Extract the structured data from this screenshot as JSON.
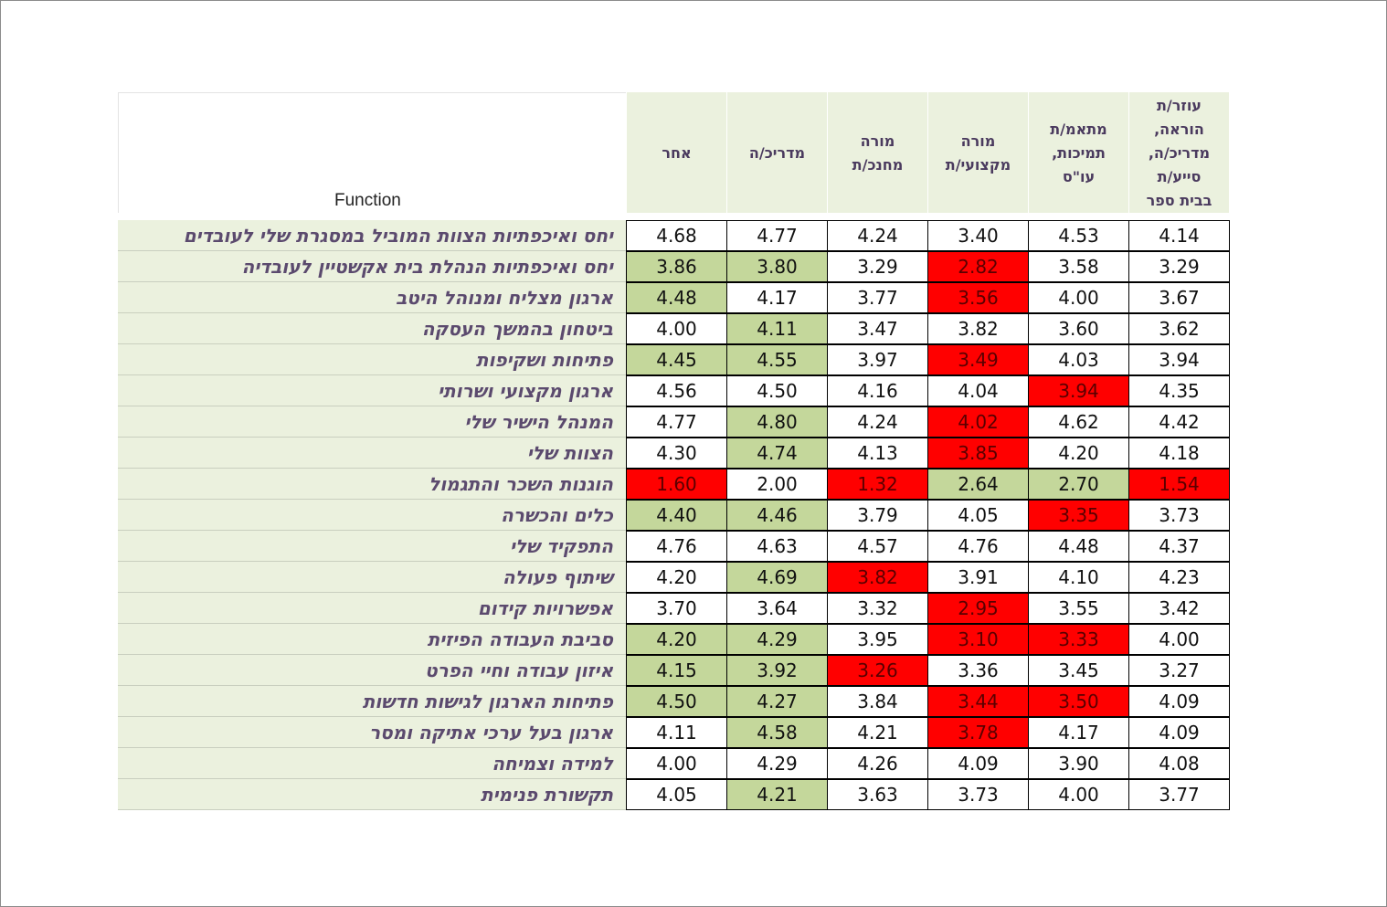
{
  "chart_data": {
    "type": "table",
    "corner_label": "Function",
    "columns": [
      {
        "label": "עוזר/ת\nהוראה,\nמדריכ/ה,\nסייע/ת\nבבית ספר"
      },
      {
        "label": "מתאמ/ת\nתמיכות,\nעו\"ס"
      },
      {
        "label": "מורה\nמקצועי/ת"
      },
      {
        "label": "מורה\nמחנכ/ת"
      },
      {
        "label": "מדריכ/ה"
      },
      {
        "label": "אחר"
      }
    ],
    "colors": {
      "green": "#c4d79b",
      "red": "#ff0000",
      "white": "#ffffff",
      "label_bg": "#ebf1de"
    },
    "rows": [
      {
        "label": "יחס ואיכפתיות הצוות המוביל במסגרת שלי לעובדים",
        "values": [
          "4.14",
          "4.53",
          "3.40",
          "4.24",
          "4.77",
          "4.68"
        ],
        "highlight": [
          "w",
          "w",
          "w",
          "w",
          "w",
          "w"
        ]
      },
      {
        "label": "יחס ואיכפתיות הנהלת בית אקשטיין לעובדיה",
        "values": [
          "3.29",
          "3.58",
          "2.82",
          "3.29",
          "3.80",
          "3.86"
        ],
        "highlight": [
          "w",
          "w",
          "r",
          "w",
          "g",
          "g"
        ]
      },
      {
        "label": "ארגון מצליח ומנוהל היטב",
        "values": [
          "3.67",
          "4.00",
          "3.56",
          "3.77",
          "4.17",
          "4.48"
        ],
        "highlight": [
          "w",
          "w",
          "r",
          "w",
          "w",
          "g"
        ]
      },
      {
        "label": "ביטחון בהמשך העסקה",
        "values": [
          "3.62",
          "3.60",
          "3.82",
          "3.47",
          "4.11",
          "4.00"
        ],
        "highlight": [
          "w",
          "w",
          "w",
          "w",
          "g",
          "w"
        ]
      },
      {
        "label": "פתיחות ושקיפות",
        "values": [
          "3.94",
          "4.03",
          "3.49",
          "3.97",
          "4.55",
          "4.45"
        ],
        "highlight": [
          "w",
          "w",
          "r",
          "w",
          "g",
          "g"
        ]
      },
      {
        "label": "ארגון מקצועי ושרותי",
        "values": [
          "4.35",
          "3.94",
          "4.04",
          "4.16",
          "4.50",
          "4.56"
        ],
        "highlight": [
          "w",
          "r",
          "w",
          "w",
          "w",
          "w"
        ]
      },
      {
        "label": "המנהל הישיר שלי",
        "values": [
          "4.42",
          "4.62",
          "4.02",
          "4.24",
          "4.80",
          "4.77"
        ],
        "highlight": [
          "w",
          "w",
          "r",
          "w",
          "g",
          "w"
        ]
      },
      {
        "label": "הצוות שלי",
        "values": [
          "4.18",
          "4.20",
          "3.85",
          "4.13",
          "4.74",
          "4.30"
        ],
        "highlight": [
          "w",
          "w",
          "r",
          "w",
          "g",
          "w"
        ]
      },
      {
        "label": "הוגנות השכר והתגמול",
        "values": [
          "1.54",
          "2.70",
          "2.64",
          "1.32",
          "2.00",
          "1.60"
        ],
        "highlight": [
          "r",
          "g",
          "g",
          "r",
          "w",
          "r"
        ]
      },
      {
        "label": "כלים והכשרה",
        "values": [
          "3.73",
          "3.35",
          "4.05",
          "3.79",
          "4.46",
          "4.40"
        ],
        "highlight": [
          "w",
          "r",
          "w",
          "w",
          "g",
          "g"
        ]
      },
      {
        "label": "התפקיד שלי",
        "values": [
          "4.37",
          "4.48",
          "4.76",
          "4.57",
          "4.63",
          "4.76"
        ],
        "highlight": [
          "w",
          "w",
          "w",
          "w",
          "w",
          "w"
        ]
      },
      {
        "label": "שיתוף פעולה",
        "values": [
          "4.23",
          "4.10",
          "3.91",
          "3.82",
          "4.69",
          "4.20"
        ],
        "highlight": [
          "w",
          "w",
          "w",
          "r",
          "g",
          "w"
        ]
      },
      {
        "label": "אפשרויות קידום",
        "values": [
          "3.42",
          "3.55",
          "2.95",
          "3.32",
          "3.64",
          "3.70"
        ],
        "highlight": [
          "w",
          "w",
          "r",
          "w",
          "w",
          "w"
        ]
      },
      {
        "label": "סביבת העבודה הפיזית",
        "values": [
          "4.00",
          "3.33",
          "3.10",
          "3.95",
          "4.29",
          "4.20"
        ],
        "highlight": [
          "w",
          "r",
          "r",
          "w",
          "g",
          "g"
        ]
      },
      {
        "label": "איזון עבודה וחיי הפרט",
        "values": [
          "3.27",
          "3.45",
          "3.36",
          "3.26",
          "3.92",
          "4.15"
        ],
        "highlight": [
          "w",
          "w",
          "w",
          "r",
          "g",
          "g"
        ]
      },
      {
        "label": "פתיחות הארגון לגישות חדשות",
        "values": [
          "4.09",
          "3.50",
          "3.44",
          "3.84",
          "4.27",
          "4.50"
        ],
        "highlight": [
          "w",
          "r",
          "r",
          "w",
          "g",
          "g"
        ]
      },
      {
        "label": "ארגון בעל ערכי אתיקה ומסר",
        "values": [
          "4.09",
          "4.17",
          "3.78",
          "4.21",
          "4.58",
          "4.11"
        ],
        "highlight": [
          "w",
          "w",
          "r",
          "w",
          "g",
          "w"
        ]
      },
      {
        "label": "למידה וצמיחה",
        "values": [
          "4.08",
          "3.90",
          "4.09",
          "4.26",
          "4.29",
          "4.00"
        ],
        "highlight": [
          "w",
          "w",
          "w",
          "w",
          "w",
          "w"
        ]
      },
      {
        "label": "תקשורת פנימית",
        "values": [
          "3.77",
          "4.00",
          "3.73",
          "3.63",
          "4.21",
          "4.05"
        ],
        "highlight": [
          "w",
          "w",
          "w",
          "w",
          "g",
          "w"
        ]
      }
    ]
  }
}
